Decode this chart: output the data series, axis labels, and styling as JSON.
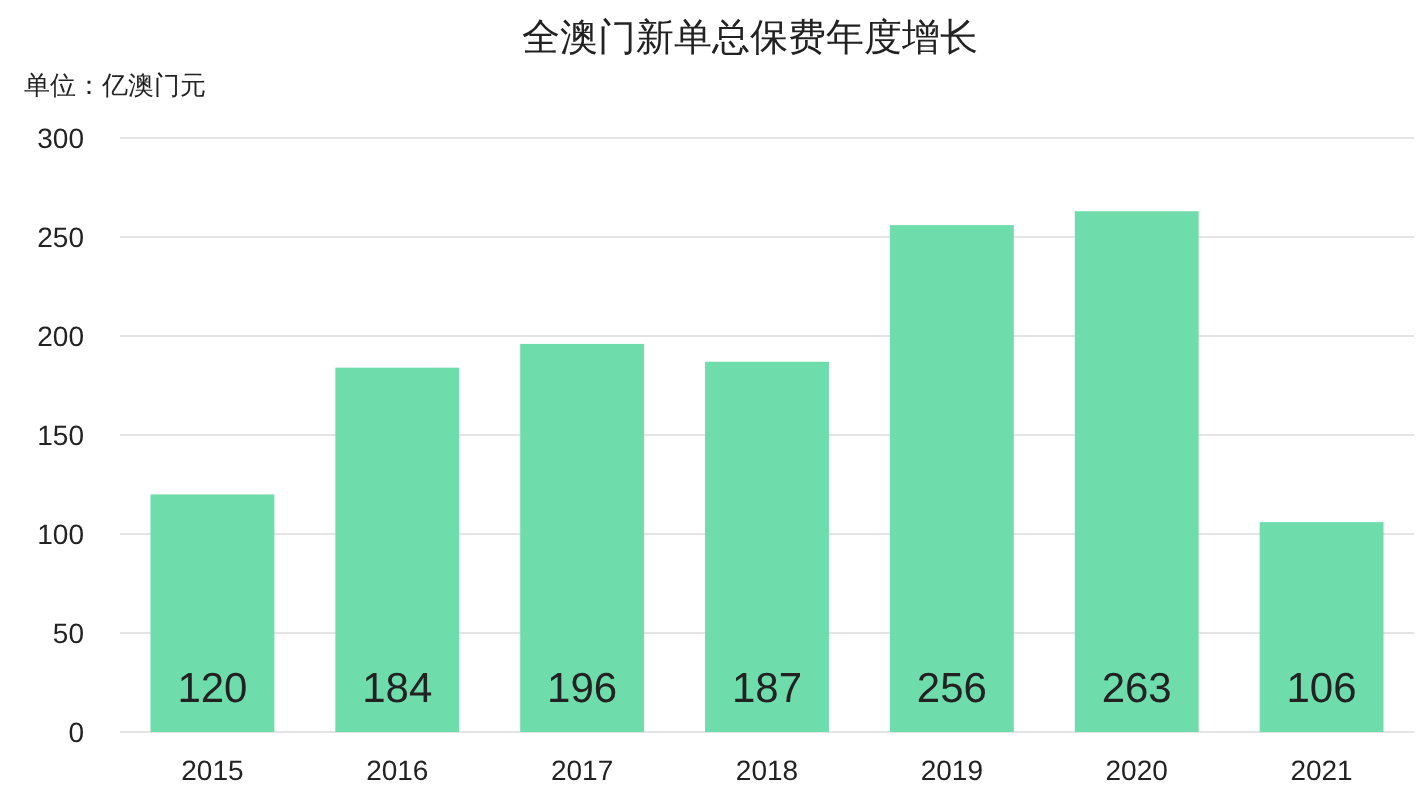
{
  "chart_data": {
    "type": "bar",
    "title": "全澳门新单总保费年度增长",
    "ylabel": "单位：亿澳门元",
    "categories": [
      "2015",
      "2016",
      "2017",
      "2018",
      "2019",
      "2020",
      "2021"
    ],
    "values": [
      120,
      184,
      196,
      187,
      256,
      263,
      106
    ],
    "color": "#6edcab",
    "ylim": [
      0,
      300
    ],
    "yticks": [
      0,
      50,
      100,
      150,
      200,
      250,
      300
    ],
    "grid": "y",
    "data_labels": true
  }
}
